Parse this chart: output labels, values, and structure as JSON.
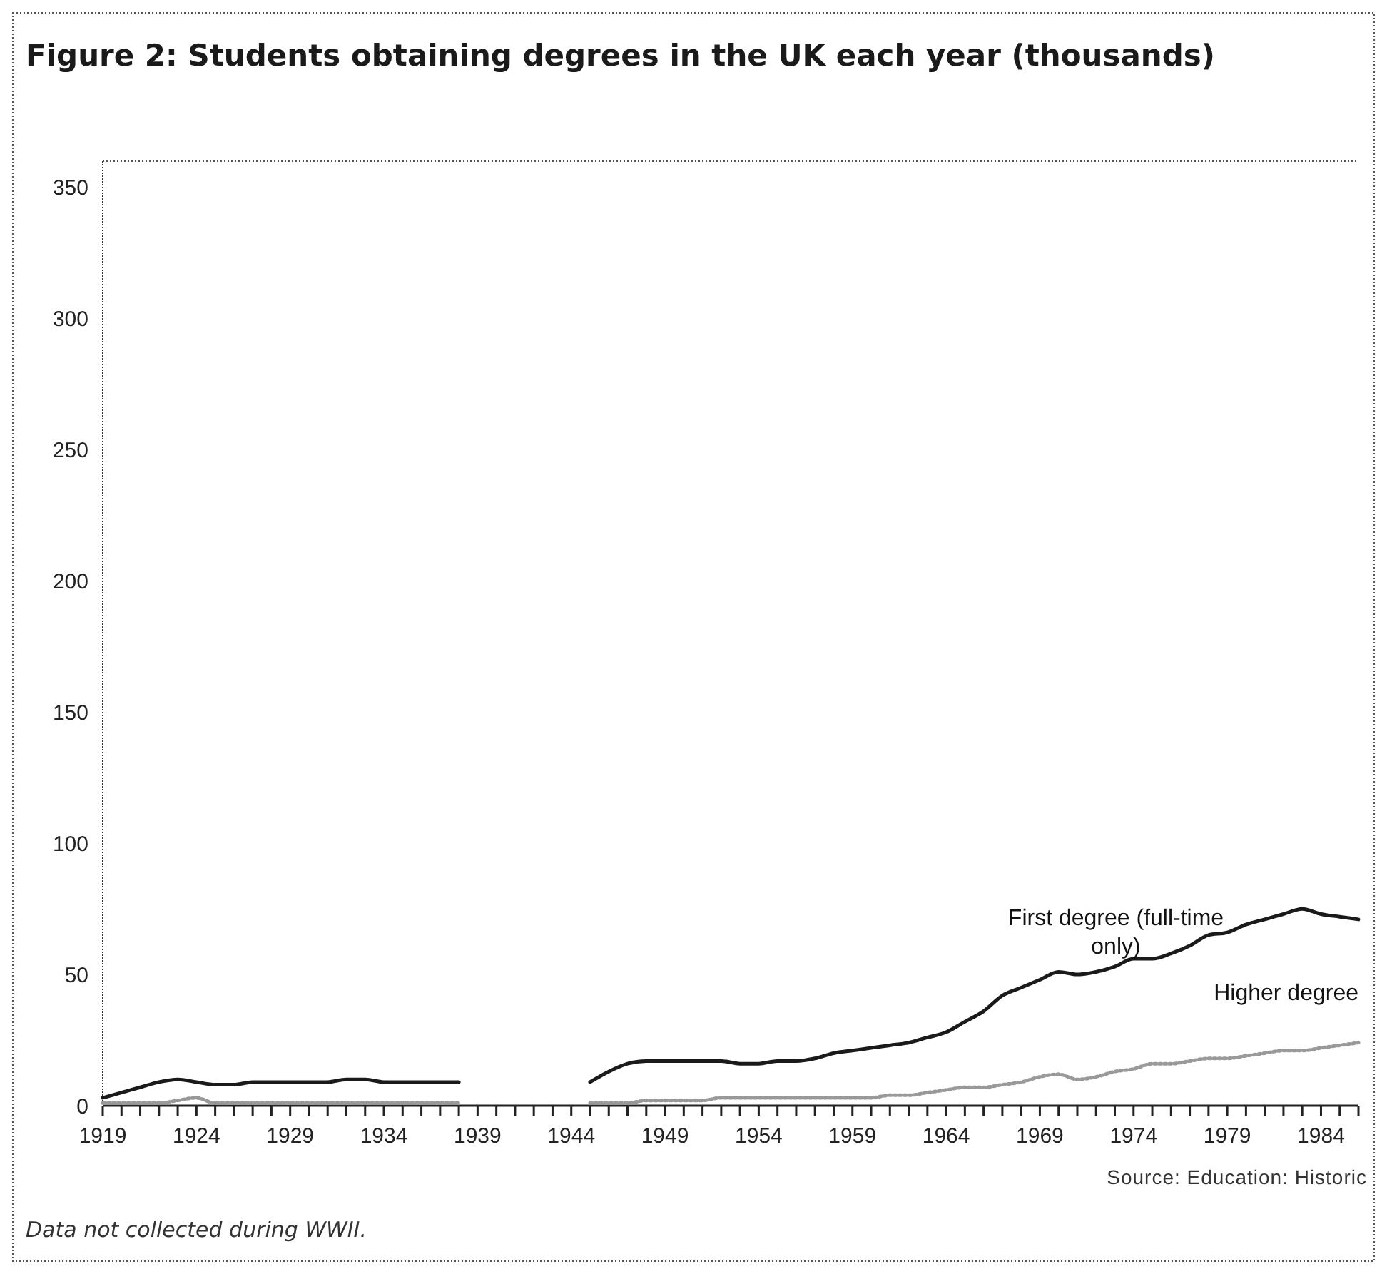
{
  "chart_data": {
    "type": "line",
    "title": "Figure 2: Students obtaining degrees in the UK each year (thousands)",
    "x": [
      1919,
      1920,
      1921,
      1922,
      1923,
      1924,
      1925,
      1926,
      1927,
      1928,
      1929,
      1930,
      1931,
      1932,
      1933,
      1934,
      1935,
      1936,
      1937,
      1938,
      1939,
      1940,
      1941,
      1942,
      1943,
      1944,
      1945,
      1946,
      1947,
      1948,
      1949,
      1950,
      1951,
      1952,
      1953,
      1954,
      1955,
      1956,
      1957,
      1958,
      1959,
      1960,
      1961,
      1962,
      1963,
      1964,
      1965,
      1966,
      1967,
      1968,
      1969,
      1970,
      1971,
      1972,
      1973,
      1974,
      1975,
      1976,
      1977,
      1978,
      1979,
      1980,
      1981,
      1982,
      1983,
      1984,
      1985,
      1986
    ],
    "series": [
      {
        "name": "First degree (full-time only)",
        "color": "#1a1a1a",
        "line_style": "solid",
        "values": [
          3,
          5,
          7,
          9,
          10,
          9,
          8,
          8,
          9,
          9,
          9,
          9,
          9,
          10,
          10,
          9,
          9,
          9,
          9,
          9,
          null,
          null,
          null,
          null,
          null,
          null,
          9,
          13,
          16,
          17,
          17,
          17,
          17,
          17,
          16,
          16,
          17,
          17,
          18,
          20,
          21,
          22,
          23,
          24,
          26,
          28,
          32,
          36,
          42,
          45,
          48,
          51,
          50,
          51,
          53,
          56,
          56,
          58,
          61,
          65,
          66,
          69,
          71,
          73,
          75,
          73,
          72,
          71
        ]
      },
      {
        "name": "Higher degree",
        "color": "#999999",
        "line_style": "dotted",
        "values": [
          1,
          1,
          1,
          1,
          2,
          3,
          1,
          1,
          1,
          1,
          1,
          1,
          1,
          1,
          1,
          1,
          1,
          1,
          1,
          1,
          null,
          null,
          null,
          null,
          null,
          null,
          1,
          1,
          1,
          2,
          2,
          2,
          2,
          3,
          3,
          3,
          3,
          3,
          3,
          3,
          3,
          3,
          4,
          4,
          5,
          6,
          7,
          7,
          8,
          9,
          11,
          12,
          10,
          11,
          13,
          14,
          16,
          16,
          17,
          18,
          18,
          19,
          20,
          21,
          21,
          22,
          23,
          24
        ]
      }
    ],
    "xlim": [
      1919,
      1986
    ],
    "xticks": [
      1919,
      {
        "value": 1920,
        "label": null
      },
      {
        "value": 1921,
        "label": null
      },
      {
        "value": 1922,
        "label": null
      },
      {
        "value": 1923,
        "label": null
      },
      1924,
      {
        "value": 1925,
        "label": null
      },
      {
        "value": 1926,
        "label": null
      },
      {
        "value": 1927,
        "label": null
      },
      {
        "value": 1928,
        "label": null
      },
      1929,
      {
        "value": 1930,
        "label": null
      },
      {
        "value": 1931,
        "label": null
      },
      {
        "value": 1932,
        "label": null
      },
      {
        "value": 1933,
        "label": null
      },
      1934,
      {
        "value": 1935,
        "label": null
      },
      {
        "value": 1936,
        "label": null
      },
      {
        "value": 1937,
        "label": null
      },
      {
        "value": 1938,
        "label": null
      },
      1939,
      {
        "value": 1940,
        "label": null
      },
      {
        "value": 1941,
        "label": null
      },
      {
        "value": 1942,
        "label": null
      },
      {
        "value": 1943,
        "label": null
      },
      1944,
      {
        "value": 1945,
        "label": null
      },
      {
        "value": 1946,
        "label": null
      },
      {
        "value": 1947,
        "label": null
      },
      {
        "value": 1948,
        "label": null
      },
      1949,
      {
        "value": 1950,
        "label": null
      },
      {
        "value": 1951,
        "label": null
      },
      {
        "value": 1952,
        "label": null
      },
      {
        "value": 1953,
        "label": null
      },
      1954,
      {
        "value": 1955,
        "label": null
      },
      {
        "value": 1956,
        "label": null
      },
      {
        "value": 1957,
        "label": null
      },
      {
        "value": 1958,
        "label": null
      },
      1959,
      {
        "value": 1960,
        "label": null
      },
      {
        "value": 1961,
        "label": null
      },
      {
        "value": 1962,
        "label": null
      },
      {
        "value": 1963,
        "label": null
      },
      1964,
      {
        "value": 1965,
        "label": null
      },
      {
        "value": 1966,
        "label": null
      },
      {
        "value": 1967,
        "label": null
      },
      {
        "value": 1968,
        "label": null
      },
      1969,
      {
        "value": 1970,
        "label": null
      },
      {
        "value": 1971,
        "label": null
      },
      {
        "value": 1972,
        "label": null
      },
      {
        "value": 1973,
        "label": null
      },
      1974,
      {
        "value": 1975,
        "label": null
      },
      {
        "value": 1976,
        "label": null
      },
      {
        "value": 1977,
        "label": null
      },
      {
        "value": 1978,
        "label": null
      },
      1979,
      {
        "value": 1980,
        "label": null
      },
      {
        "value": 1981,
        "label": null
      },
      {
        "value": 1982,
        "label": null
      },
      {
        "value": 1983,
        "label": null
      },
      1984,
      {
        "value": 1985,
        "label": null
      },
      {
        "value": 1986,
        "label": null
      }
    ],
    "ylim": [
      0,
      360
    ],
    "yticks": [
      0,
      50,
      100,
      150,
      200,
      250,
      300,
      350
    ],
    "grid": false,
    "annotations": [
      "Source: Education: Historic",
      "Data not collected during WWII."
    ]
  }
}
